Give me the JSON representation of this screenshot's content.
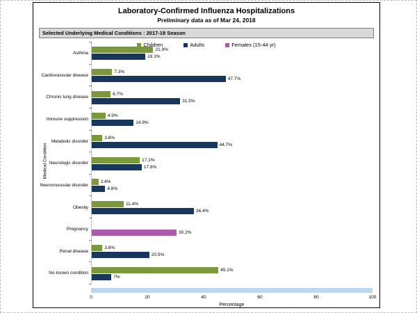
{
  "header": {
    "title": "Laboratory-Confirmed Influenza Hospitalizations",
    "subtitle": "Preliminary data as of Mar 24, 2018",
    "panel_label": "Selected Underlying Medical Conditions : 2017-18 Season"
  },
  "colors": {
    "children_green": "#7a993b",
    "adults_navy": "#17375e",
    "females_purple": "#aa5baa",
    "track_light_blue": "#bdd7ee",
    "panel_gray": "#d9d9d9"
  },
  "chart_data": {
    "type": "bar",
    "orientation": "horizontal",
    "title": "Laboratory-Confirmed Influenza Hospitalizations",
    "subtitle": "Preliminary data as of Mar 24, 2018",
    "xlabel": "Percentage",
    "ylabel": "Medical Condition",
    "xlim": [
      0,
      100
    ],
    "xticks": [
      0,
      20,
      40,
      60,
      80,
      100
    ],
    "grid": false,
    "legend_position": "top",
    "categories": [
      "Asthma",
      "Cardiovascular disease",
      "Chronic lung disease",
      "Immune suppression",
      "Metabolic disorder",
      "Neurologic disorder",
      "Neuromuscular disorder",
      "Obesity",
      "Pregnancy",
      "Renal disease",
      "No known condition"
    ],
    "series": [
      {
        "name": "Children",
        "color": "#7a993b",
        "values": [
          21.9,
          7.3,
          6.7,
          4.9,
          3.8,
          17.1,
          2.4,
          11.4,
          null,
          3.8,
          45.1
        ]
      },
      {
        "name": "Adults",
        "color": "#17375e",
        "values": [
          19.1,
          47.7,
          31.5,
          14.9,
          44.7,
          17.8,
          4.8,
          36.4,
          null,
          20.5,
          7
        ]
      },
      {
        "name": "Females (15-44 yr)",
        "color": "#aa5baa",
        "values": [
          null,
          null,
          null,
          null,
          null,
          null,
          null,
          null,
          30.2,
          null,
          null
        ]
      }
    ],
    "track_bar": {
      "color": "#bdd7ee",
      "range": [
        0,
        100
      ]
    }
  }
}
